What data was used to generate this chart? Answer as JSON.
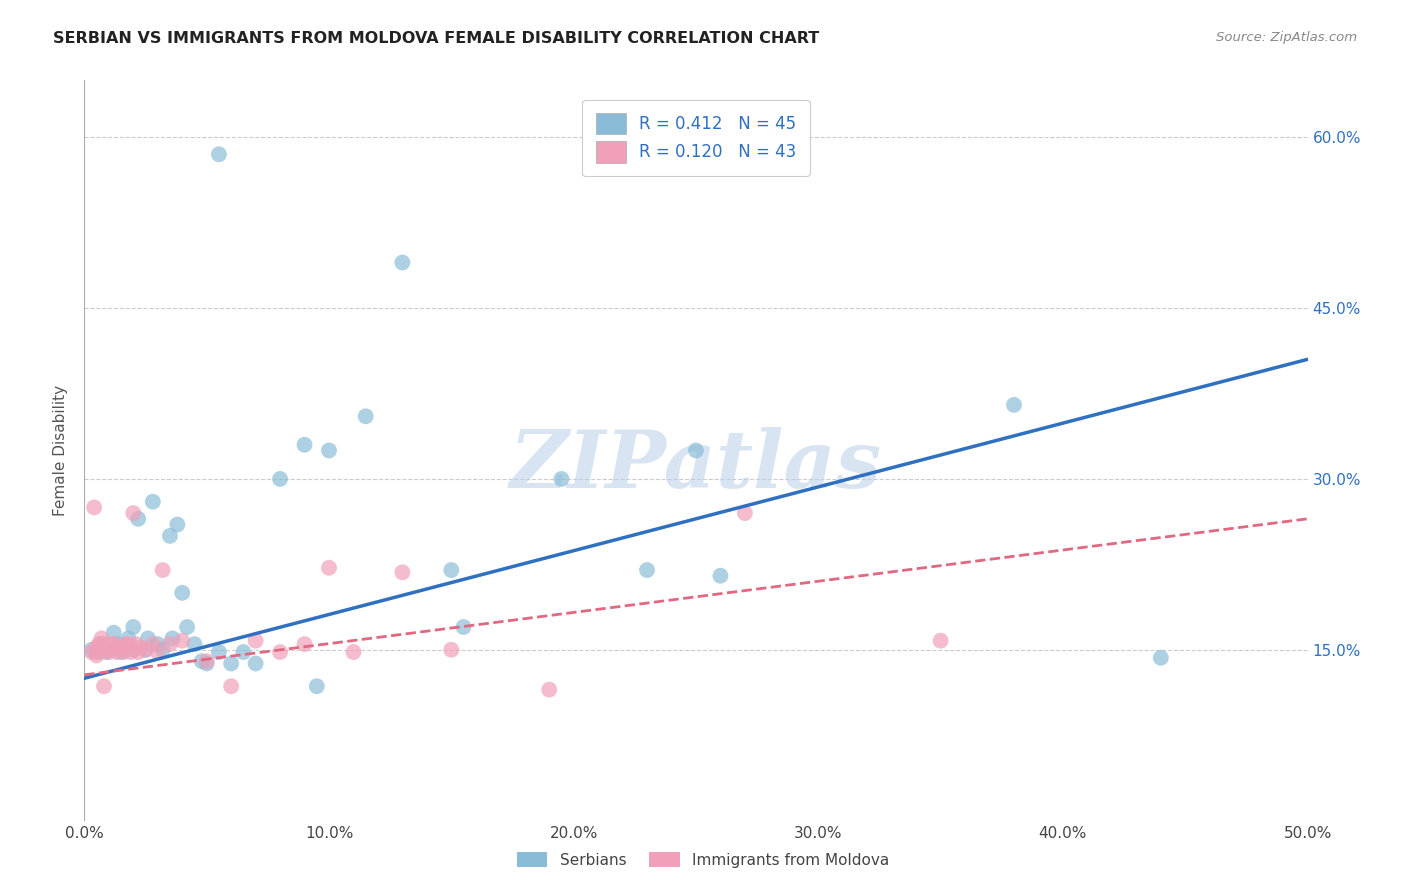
{
  "title": "SERBIAN VS IMMIGRANTS FROM MOLDOVA FEMALE DISABILITY CORRELATION CHART",
  "source": "Source: ZipAtlas.com",
  "ylabel": "Female Disability",
  "watermark": "ZIPatlas",
  "xlim": [
    0.0,
    0.5
  ],
  "ylim": [
    0.0,
    0.65
  ],
  "xticks": [
    0.0,
    0.1,
    0.2,
    0.3,
    0.4,
    0.5
  ],
  "yticks": [
    0.15,
    0.3,
    0.45,
    0.6
  ],
  "ytick_labels_right": [
    "15.0%",
    "30.0%",
    "45.0%",
    "60.0%"
  ],
  "xtick_labels": [
    "0.0%",
    "10.0%",
    "20.0%",
    "30.0%",
    "40.0%",
    "50.0%"
  ],
  "serbian_color": "#8abcd8",
  "moldova_color": "#f0a0b8",
  "serbian_line_color": "#3070c0",
  "moldova_line_color": "#e06880",
  "legend_r1": "R = 0.412",
  "legend_n1": "N = 45",
  "legend_r2": "R = 0.120",
  "legend_n2": "N = 43",
  "serbian_line_x0": 0.0,
  "serbian_line_y0": 0.125,
  "serbian_line_x1": 0.5,
  "serbian_line_y1": 0.405,
  "moldova_line_x0": 0.0,
  "moldova_line_y0": 0.128,
  "moldova_line_x1": 0.5,
  "moldova_line_y1": 0.265,
  "serbian_scatter_x": [
    0.055,
    0.01,
    0.012,
    0.014,
    0.016,
    0.018,
    0.02,
    0.02,
    0.022,
    0.025,
    0.026,
    0.028,
    0.03,
    0.032,
    0.035,
    0.036,
    0.038,
    0.04,
    0.042,
    0.045,
    0.048,
    0.05,
    0.055,
    0.06,
    0.065,
    0.07,
    0.08,
    0.09,
    0.095,
    0.1,
    0.115,
    0.13,
    0.15,
    0.155,
    0.195,
    0.23,
    0.25,
    0.26,
    0.38,
    0.44,
    0.003,
    0.005,
    0.007,
    0.009,
    0.015
  ],
  "serbian_scatter_y": [
    0.585,
    0.15,
    0.165,
    0.155,
    0.15,
    0.16,
    0.15,
    0.17,
    0.265,
    0.15,
    0.16,
    0.28,
    0.155,
    0.15,
    0.25,
    0.16,
    0.26,
    0.2,
    0.17,
    0.155,
    0.14,
    0.138,
    0.148,
    0.138,
    0.148,
    0.138,
    0.3,
    0.33,
    0.118,
    0.325,
    0.355,
    0.49,
    0.22,
    0.17,
    0.3,
    0.22,
    0.325,
    0.215,
    0.365,
    0.143,
    0.15,
    0.148,
    0.155,
    0.148,
    0.148
  ],
  "moldova_scatter_x": [
    0.003,
    0.004,
    0.005,
    0.006,
    0.007,
    0.008,
    0.009,
    0.01,
    0.011,
    0.012,
    0.013,
    0.014,
    0.015,
    0.016,
    0.017,
    0.018,
    0.019,
    0.02,
    0.021,
    0.022,
    0.023,
    0.025,
    0.028,
    0.03,
    0.032,
    0.035,
    0.04,
    0.05,
    0.06,
    0.07,
    0.08,
    0.09,
    0.1,
    0.11,
    0.13,
    0.15,
    0.19,
    0.27,
    0.35,
    0.005,
    0.006,
    0.007,
    0.008
  ],
  "moldova_scatter_y": [
    0.148,
    0.275,
    0.152,
    0.155,
    0.16,
    0.155,
    0.15,
    0.148,
    0.155,
    0.155,
    0.148,
    0.152,
    0.152,
    0.148,
    0.155,
    0.155,
    0.148,
    0.27,
    0.155,
    0.148,
    0.152,
    0.15,
    0.155,
    0.148,
    0.22,
    0.155,
    0.158,
    0.14,
    0.118,
    0.158,
    0.148,
    0.155,
    0.222,
    0.148,
    0.218,
    0.15,
    0.115,
    0.27,
    0.158,
    0.145,
    0.148,
    0.152,
    0.118
  ]
}
